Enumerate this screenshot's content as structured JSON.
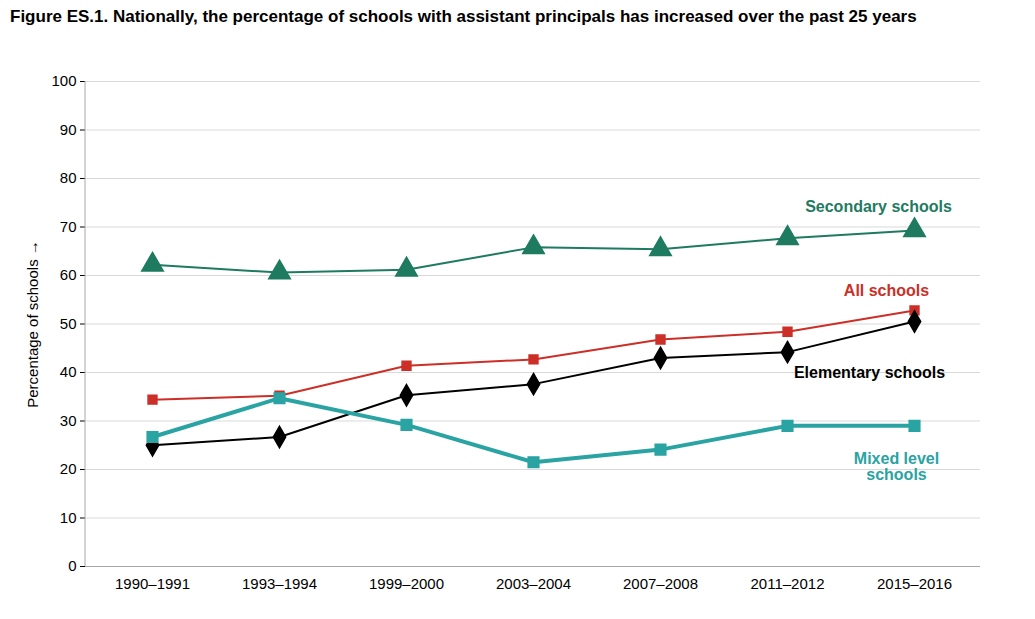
{
  "chart_data": {
    "type": "line",
    "title": "Figure ES.1. Nationally, the percentage of schools with assistant principals has increased over the past 25 years",
    "ylabel": "Percentage of schools",
    "categories": [
      "1990–1991",
      "1993–1994",
      "1999–2000",
      "2003–2004",
      "2007–2008",
      "2011–2012",
      "2015–2016"
    ],
    "series": [
      {
        "name": "Secondary schools",
        "color": "#1e7b5f",
        "marker": "triangle",
        "values": [
          62.2,
          60.6,
          61.2,
          65.8,
          65.4,
          67.7,
          69.3
        ]
      },
      {
        "name": "All schools",
        "color": "#cc2f27",
        "marker": "square",
        "values": [
          34.4,
          35.2,
          41.4,
          42.7,
          46.8,
          48.4,
          52.8
        ]
      },
      {
        "name": "Elementary schools",
        "color": "#000000",
        "marker": "diamond",
        "values": [
          25.0,
          26.7,
          35.3,
          37.6,
          43.0,
          44.2,
          50.5
        ]
      },
      {
        "name": "Mixed level schools",
        "color": "#2aa3a3",
        "marker": "square",
        "values": [
          26.7,
          34.7,
          29.2,
          21.5,
          24.1,
          29.0,
          29.0
        ]
      }
    ],
    "ylim": [
      0,
      100
    ],
    "yticks": [
      0,
      10,
      20,
      30,
      40,
      50,
      60,
      70,
      80,
      90,
      100
    ],
    "grid": true
  }
}
